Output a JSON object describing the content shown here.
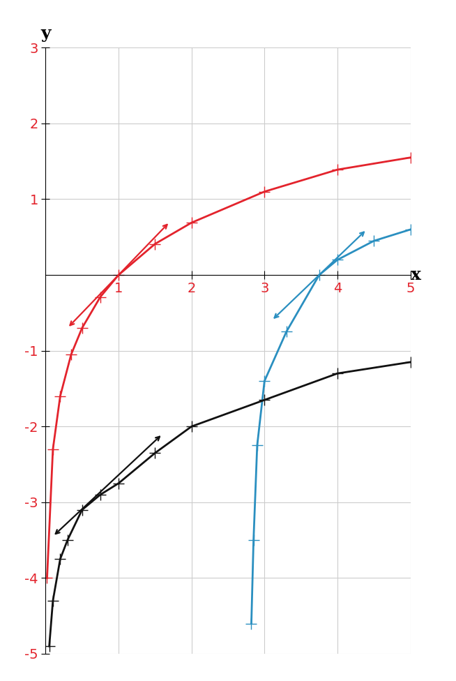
{
  "chart_data": {
    "type": "line",
    "x_label": "x",
    "y_label": "y",
    "xlim": [
      0,
      5
    ],
    "ylim": [
      -5,
      3
    ],
    "xticks": [
      1,
      2,
      3,
      4,
      5
    ],
    "yticks": [
      -5,
      -4,
      -3,
      -2,
      -1,
      1,
      2,
      3
    ],
    "grid": true,
    "series": [
      {
        "color": "#e3232c",
        "marker": "+",
        "line_style": "solid",
        "x": [
          0.02,
          0.1,
          0.2,
          0.35,
          0.5,
          0.75,
          1,
          1.5,
          2,
          3,
          4,
          5
        ],
        "values": [
          -4.0,
          -2.3,
          -1.6,
          -1.05,
          -0.7,
          -0.29,
          0,
          0.41,
          0.69,
          1.1,
          1.39,
          1.55
        ],
        "tangent": {
          "x": [
            0.3,
            1.7
          ],
          "values": [
            -0.7,
            0.7
          ]
        }
      },
      {
        "color": "#2a8fc0",
        "marker": "+",
        "line_style": "solid",
        "x": [
          2.82,
          2.85,
          2.9,
          3.0,
          3.3,
          3.75,
          4.0,
          4.5,
          5.0
        ],
        "values": [
          -4.6,
          -3.5,
          -2.25,
          -1.4,
          -0.75,
          0,
          0.2,
          0.45,
          0.6
        ],
        "tangent": {
          "x": [
            3.1,
            4.4
          ],
          "values": [
            -0.6,
            0.6
          ]
        }
      },
      {
        "color": "#111111",
        "marker": "+",
        "line_style": "solid",
        "x": [
          0.05,
          0.1,
          0.2,
          0.3,
          0.5,
          0.75,
          1,
          1.5,
          2,
          3,
          4,
          5
        ],
        "values": [
          -4.9,
          -4.3,
          -3.75,
          -3.5,
          -3.1,
          -2.9,
          -2.75,
          -2.35,
          -2.0,
          -1.65,
          -1.3,
          -1.15
        ],
        "tangent": {
          "x": [
            0.1,
            1.6
          ],
          "values": [
            -3.45,
            -2.1
          ]
        }
      }
    ]
  }
}
